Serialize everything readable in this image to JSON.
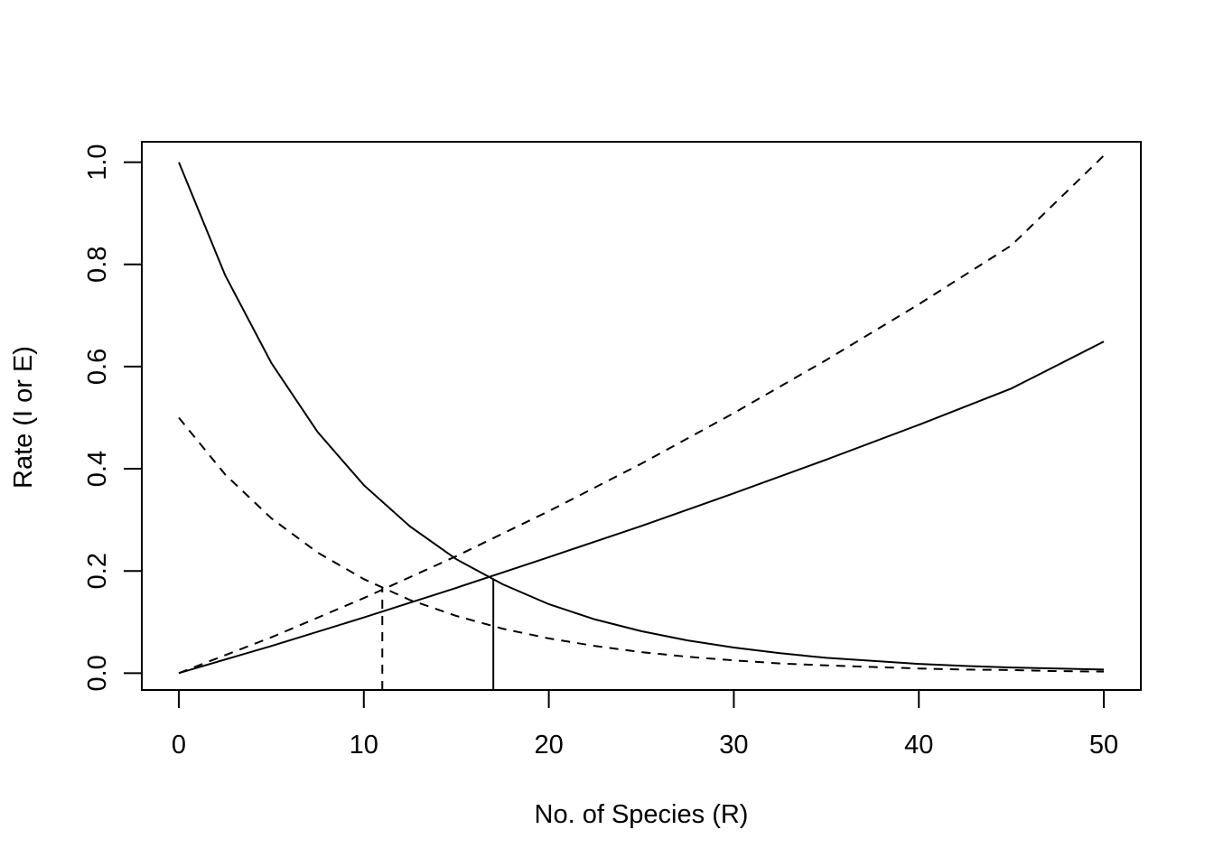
{
  "chart_data": {
    "type": "line",
    "title": "",
    "xlabel": "No. of Species (R)",
    "ylabel": "Rate (I or E)",
    "xlim": [
      -2,
      52
    ],
    "ylim": [
      -0.033,
      1.04
    ],
    "x_ticks": [
      0,
      10,
      20,
      30,
      40,
      50
    ],
    "y_ticks": [
      0.0,
      0.2,
      0.4,
      0.6,
      0.8,
      1.0
    ],
    "x_tick_labels": [
      "0",
      "10",
      "20",
      "30",
      "40",
      "50"
    ],
    "y_tick_labels": [
      "0.0",
      "0.2",
      "0.4",
      "0.6",
      "0.8",
      "1.0"
    ],
    "grid": false,
    "legend": "none",
    "series": [
      {
        "style": "solid",
        "x": [
          0,
          2.5,
          5,
          7.5,
          10,
          12.5,
          15,
          17.5,
          20,
          22.5,
          25,
          27.5,
          30,
          32.5,
          35,
          37.5,
          40,
          42.5,
          45,
          47.5,
          50
        ],
        "values": [
          1.0,
          0.779,
          0.607,
          0.472,
          0.368,
          0.287,
          0.223,
          0.174,
          0.135,
          0.105,
          0.082,
          0.064,
          0.05,
          0.039,
          0.03,
          0.024,
          0.018,
          0.014,
          0.011,
          0.009,
          0.007
        ]
      },
      {
        "style": "dashed",
        "x": [
          0,
          2.5,
          5,
          7.5,
          10,
          12.5,
          15,
          17.5,
          20,
          22.5,
          25,
          27.5,
          30,
          32.5,
          35,
          37.5,
          40,
          42.5,
          45,
          47.5,
          50
        ],
        "values": [
          0.5,
          0.389,
          0.303,
          0.236,
          0.184,
          0.143,
          0.112,
          0.087,
          0.068,
          0.053,
          0.041,
          0.032,
          0.025,
          0.019,
          0.015,
          0.012,
          0.009,
          0.007,
          0.006,
          0.004,
          0.003
        ]
      },
      {
        "style": "solid",
        "x": [
          0,
          5,
          10,
          15,
          20,
          25,
          30,
          35,
          40,
          45,
          50
        ],
        "values": [
          0.0,
          0.053,
          0.109,
          0.167,
          0.227,
          0.288,
          0.352,
          0.418,
          0.486,
          0.557,
          0.649
        ]
      },
      {
        "style": "dashed",
        "x": [
          0,
          5,
          10,
          15,
          20,
          25,
          30,
          35,
          40,
          45,
          50
        ],
        "values": [
          0.0,
          0.07,
          0.147,
          0.229,
          0.317,
          0.41,
          0.509,
          0.613,
          0.722,
          0.837,
          1.013
        ]
      }
    ],
    "equilibrium_lines": [
      {
        "style": "dashed",
        "x": 11,
        "y": 0.168
      },
      {
        "style": "solid",
        "x": 17,
        "y": 0.185
      }
    ]
  }
}
